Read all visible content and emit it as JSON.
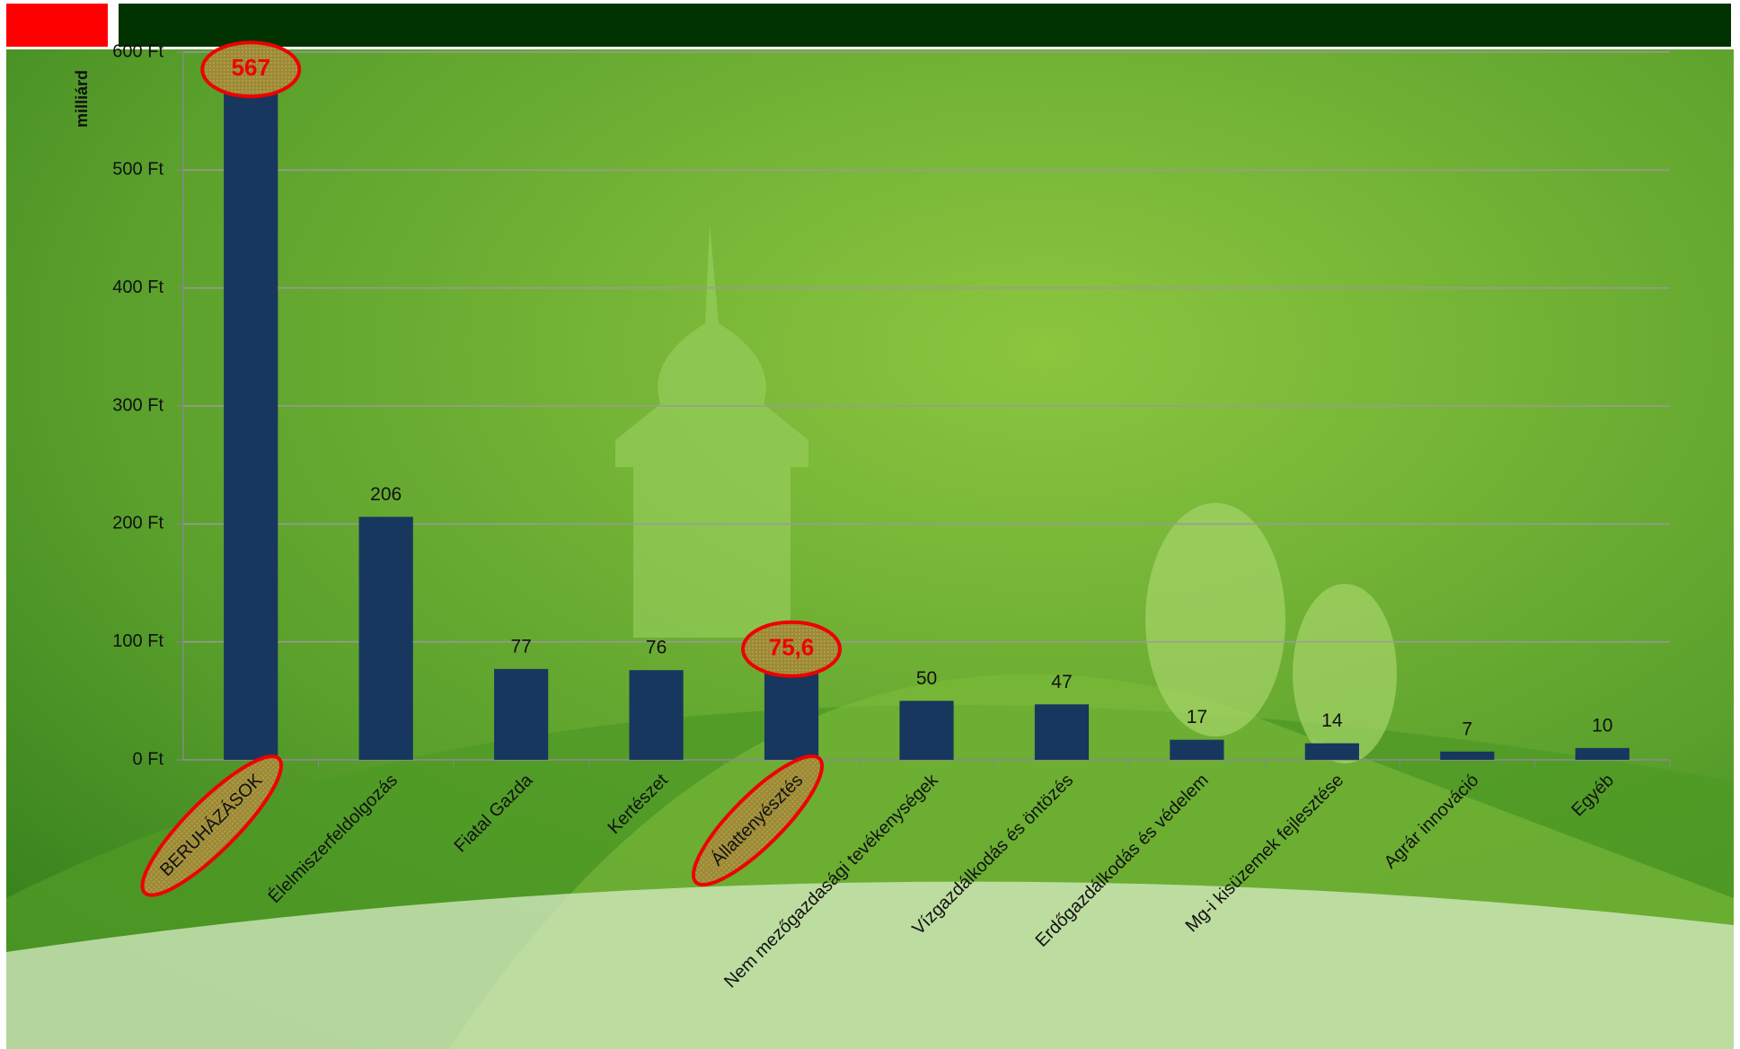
{
  "chart_data": {
    "type": "bar",
    "y_axis_label": "milliárd",
    "categories": [
      "BERUHÁZÁSOK",
      "Élelmiszerfeldolgozás",
      "Fiatal Gazda",
      "Kertészet",
      "Állattenyésztés",
      "Nem mezőgazdasági tevékenységek",
      "Vízgazdálkodás és öntözés",
      "Erdőgazdálkodás és védelem",
      "Mg-i kisüzemek fejlesztése",
      "Agrár innováció",
      "Egyéb"
    ],
    "values": [
      567,
      206,
      77,
      76,
      75.6,
      50,
      47,
      17,
      14,
      7,
      10
    ],
    "value_labels": [
      "567",
      "206",
      "77",
      "76",
      "75,6",
      "50",
      "47",
      "17",
      "14",
      "7",
      "10"
    ],
    "color": "#17375e",
    "ylim": [
      0,
      600
    ],
    "yticks": [
      {
        "value": 0,
        "label": "0 Ft"
      },
      {
        "value": 100,
        "label": "100 Ft"
      },
      {
        "value": 200,
        "label": "200 Ft"
      },
      {
        "value": 300,
        "label": "300 Ft"
      },
      {
        "value": 400,
        "label": "400 Ft"
      },
      {
        "value": 500,
        "label": "500 Ft"
      },
      {
        "value": 600,
        "label": "600 Ft"
      }
    ],
    "grid": true
  }
}
